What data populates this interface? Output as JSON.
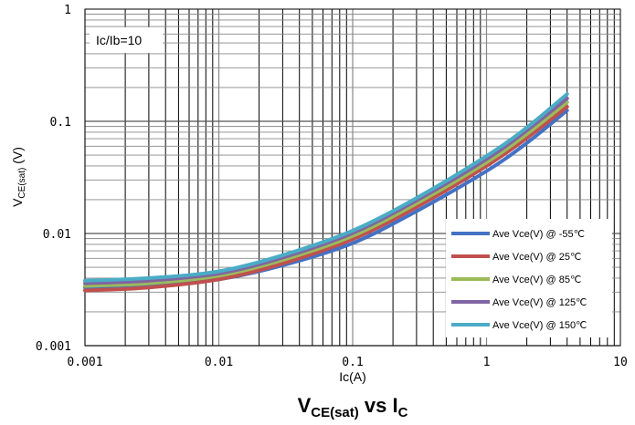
{
  "chart_data": {
    "type": "line",
    "x_scale": "log",
    "y_scale": "log",
    "xlim": [
      0.001,
      10
    ],
    "ylim": [
      0.001,
      1
    ],
    "grid": true,
    "legend_position": "bottom-right",
    "x_ticks": [
      "0.001",
      "0.01",
      "0.1",
      "1",
      "10"
    ],
    "y_ticks": [
      "0.001",
      "0.01",
      "0.1",
      "1"
    ],
    "xlabel": "Ic(A)",
    "ylabel": {
      "main": "V",
      "sub": "CE(sat)",
      "unit": " (V)"
    },
    "title": {
      "v": "V",
      "v_sub": "CE(sat)",
      "mid": " vs I",
      "i_sub": "C"
    },
    "annotation": "Ic/Ib=10",
    "series": [
      {
        "name": "Ave Vce(V) @ -55℃",
        "color": "#4472c4",
        "x": [
          0.001,
          0.003,
          0.01,
          0.03,
          0.1,
          0.3,
          1,
          2,
          4
        ],
        "y": [
          0.0033,
          0.0034,
          0.0039,
          0.0052,
          0.0082,
          0.0158,
          0.036,
          0.064,
          0.125
        ]
      },
      {
        "name": "Ave Vce(V) @ 25℃",
        "color": "#c0504d",
        "x": [
          0.001,
          0.003,
          0.01,
          0.03,
          0.1,
          0.3,
          1,
          2,
          4
        ],
        "y": [
          0.0031,
          0.0033,
          0.0039,
          0.0054,
          0.0089,
          0.0172,
          0.04,
          0.071,
          0.135
        ]
      },
      {
        "name": "Ave Vce(V) @ 85℃",
        "color": "#9bbb59",
        "x": [
          0.001,
          0.003,
          0.01,
          0.03,
          0.1,
          0.3,
          1,
          2,
          4
        ],
        "y": [
          0.0034,
          0.0036,
          0.0042,
          0.0058,
          0.0095,
          0.0185,
          0.043,
          0.077,
          0.148
        ]
      },
      {
        "name": "Ave Vce(V) @ 125℃",
        "color": "#8064a2",
        "x": [
          0.001,
          0.003,
          0.01,
          0.03,
          0.1,
          0.3,
          1,
          2,
          4
        ],
        "y": [
          0.0036,
          0.0038,
          0.0044,
          0.0061,
          0.0101,
          0.0197,
          0.046,
          0.083,
          0.16
        ]
      },
      {
        "name": "Ave Vce(V) @ 150℃",
        "color": "#4bacc6",
        "x": [
          0.001,
          0.003,
          0.01,
          0.03,
          0.1,
          0.3,
          1,
          2,
          4
        ],
        "y": [
          0.0038,
          0.004,
          0.0046,
          0.0064,
          0.0106,
          0.0207,
          0.049,
          0.088,
          0.175
        ]
      }
    ]
  }
}
